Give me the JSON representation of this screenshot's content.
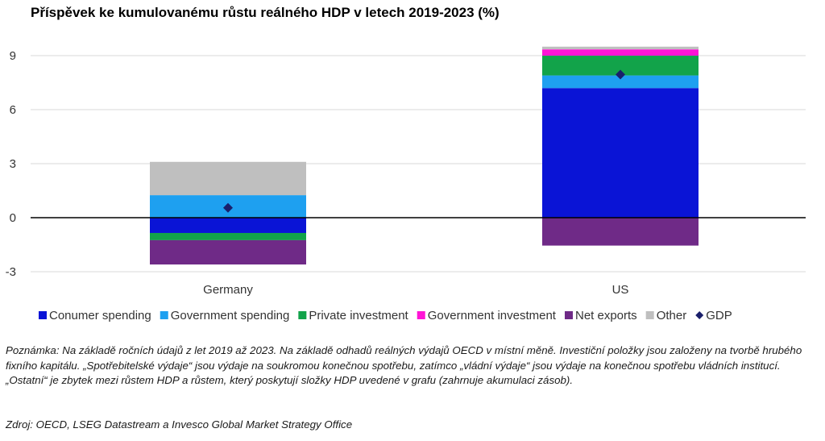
{
  "chart_data": {
    "type": "bar",
    "stacked": true,
    "title": "Příspěvek ke kumulovanému růstu reálného HDP v letech 2019-2023 (%)",
    "categories": [
      "Germany",
      "US"
    ],
    "ylim": [
      -4,
      9.5
    ],
    "yticks": [
      -3,
      0,
      3,
      6,
      9
    ],
    "grid": true,
    "legend_position": "bottom",
    "series": [
      {
        "name": "Conumer spending",
        "color": "#0a14d6",
        "values": [
          -0.85,
          7.2
        ]
      },
      {
        "name": "Government spending",
        "color": "#1ea0f0",
        "values": [
          1.25,
          0.7
        ]
      },
      {
        "name": "Private investment",
        "color": "#12a34a",
        "values": [
          -0.4,
          1.1
        ]
      },
      {
        "name": "Government investment",
        "color": "#ff14d6",
        "values": [
          0.0,
          0.35
        ]
      },
      {
        "name": "Net exports",
        "color": "#6f2a87",
        "values": [
          -1.35,
          -1.55
        ]
      },
      {
        "name": "Other",
        "color": "#bfbfbf",
        "values": [
          1.85,
          0.15
        ]
      }
    ],
    "gdp": {
      "name": "GDP",
      "color": "#1a1f6b",
      "values": [
        0.55,
        7.95
      ]
    }
  },
  "note": "Poznámka: Na základě ročních údajů z let 2019 až 2023. Na základě odhadů reálných výdajů OECD v místní měně. Investiční položky jsou založeny na tvorbě hrubého fixního kapitálu. „Spotřebitelské výdaje“ jsou výdaje na soukromou konečnou spotřebu, zatímco „vládní výdaje“ jsou výdaje na konečnou spotřebu vládních institucí. „Ostatní“ je zbytek mezi růstem HDP a růstem, který poskytují složky HDP uvedené v grafu (zahrnuje akumulaci zásob).",
  "source": "Zdroj: OECD, LSEG Datastream a Invesco Global Market Strategy Office"
}
